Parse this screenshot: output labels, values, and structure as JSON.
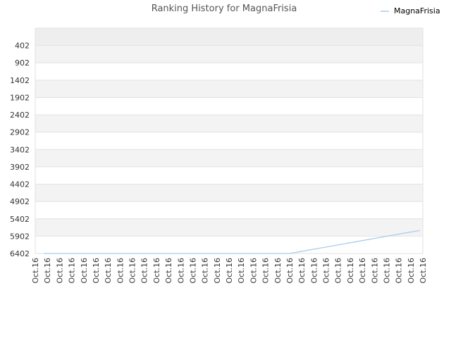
{
  "chart_data": {
    "type": "line",
    "title": "Ranking History for MagnaFrisia",
    "xlabel": "",
    "ylabel": "",
    "y_inverted": true,
    "y_ticks": [
      402,
      902,
      1402,
      1902,
      2402,
      2902,
      3402,
      3902,
      4402,
      4902,
      5402,
      5902,
      6402
    ],
    "ylim": [
      -98,
      6402
    ],
    "x_tick_labels": [
      "Oct.16",
      "Oct.16",
      "Oct.16",
      "Oct.16",
      "Oct.16",
      "Oct.16",
      "Oct.16",
      "Oct.16",
      "Oct.16",
      "Oct.16",
      "Oct.16",
      "Oct.16",
      "Oct.16",
      "Oct.16",
      "Oct.16",
      "Oct.16",
      "Oct.16",
      "Oct.16",
      "Oct.16",
      "Oct.16",
      "Oct.16",
      "Oct.16",
      "Oct.16",
      "Oct.16",
      "Oct.16",
      "Oct.16",
      "Oct.16",
      "Oct.16",
      "Oct.16",
      "Oct.16",
      "Oct.16",
      "Oct.16",
      "Oct.16"
    ],
    "legend_position": "top-right",
    "grid": true,
    "series": [
      {
        "name": "MagnaFrisia",
        "color": "#a8ccec",
        "values": [
          6402,
          6402,
          6402,
          6402,
          6402,
          6402,
          6402,
          6402,
          6402,
          6402,
          6402,
          6402,
          6402,
          6402,
          6402,
          6402,
          6402,
          6402,
          6402,
          6402,
          6402,
          6402,
          6340,
          6278,
          6216,
          6154,
          6092,
          6030,
          5968,
          5906,
          5844,
          5782,
          5740
        ]
      }
    ]
  }
}
